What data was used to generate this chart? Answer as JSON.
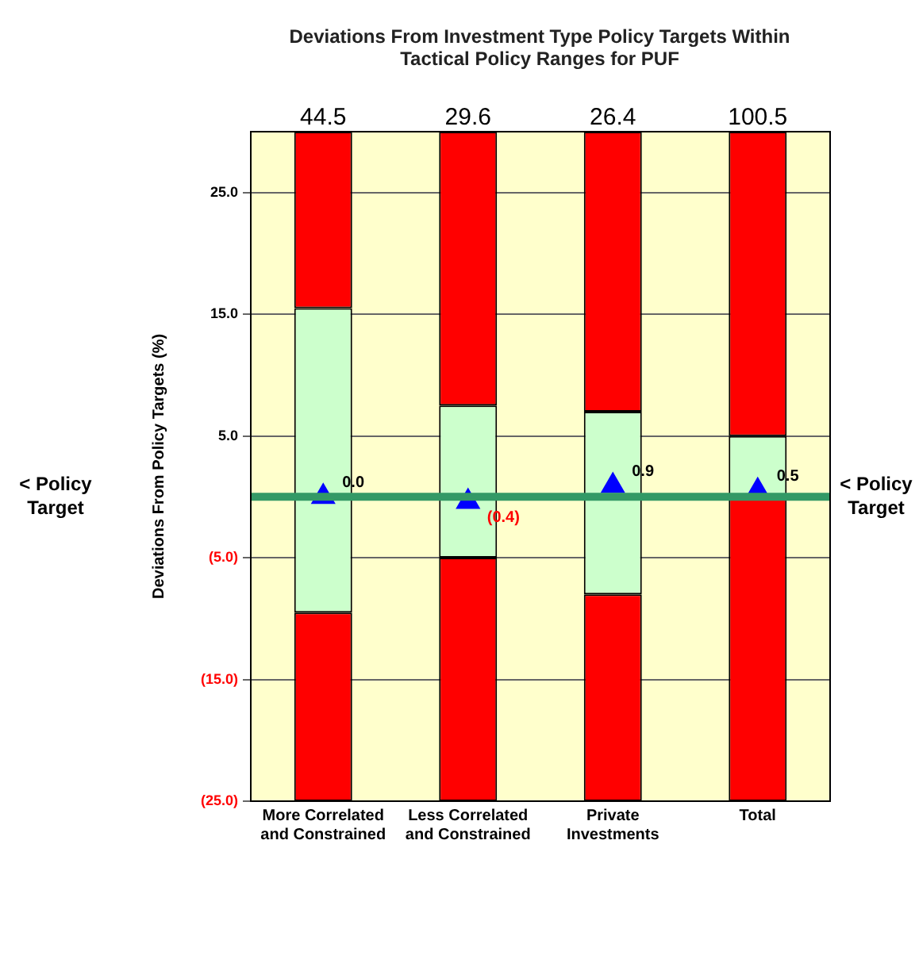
{
  "chart_data": {
    "type": "bar",
    "title": "Deviations From Investment Type Policy Targets Within Tactical Policy Ranges for PUF",
    "ylabel": "Deviations From Policy Targets (%)",
    "categories": [
      "More Correlated and Constrained",
      "Less Correlated and Constrained",
      "Private Investments",
      "Total"
    ],
    "series": [
      {
        "color": "#ff0000",
        "base": [
          -25,
          -25,
          -25,
          -25
        ],
        "values": [
          15.5,
          20,
          17,
          25
        ]
      },
      {
        "color": "#ccffcc",
        "base": [
          -9.5,
          -5,
          -8,
          0
        ],
        "values": [
          25,
          12.5,
          15,
          5
        ]
      },
      {
        "color": "#ff0000",
        "base": [
          15.5,
          7.5,
          7,
          5
        ],
        "values": [
          14.5,
          22.5,
          23,
          25
        ]
      },
      {
        "type": "scatter",
        "marker": "triangle",
        "color": "#0000ff",
        "x": [
          "More Correlated and Constrained",
          "Less Correlated and Constrained",
          "Private Investments",
          "Total"
        ],
        "values": [
          0,
          -0.4,
          0.9,
          0.5
        ],
        "value_labels": [
          "0.0",
          "(0.4)",
          "0.9",
          "0.5"
        ]
      }
    ],
    "ylim": [
      -25,
      30
    ],
    "yticks": [
      {
        "value": 25,
        "label": "25.0"
      },
      {
        "value": 15,
        "label": "15.0"
      },
      {
        "value": 5,
        "label": "5.0"
      },
      {
        "value": -5,
        "label": "(5.0)"
      },
      {
        "value": -15,
        "label": "(15.0)"
      },
      {
        "value": -25,
        "label": "(25.0)"
      }
    ],
    "grid": "y",
    "legend": false,
    "ref_lines": [
      {
        "axis": "y",
        "value": 0,
        "label": "< Policy Target",
        "color": "#339966"
      }
    ],
    "annotations": [
      "44.5",
      "29.6",
      "26.4",
      "100.5"
    ]
  }
}
